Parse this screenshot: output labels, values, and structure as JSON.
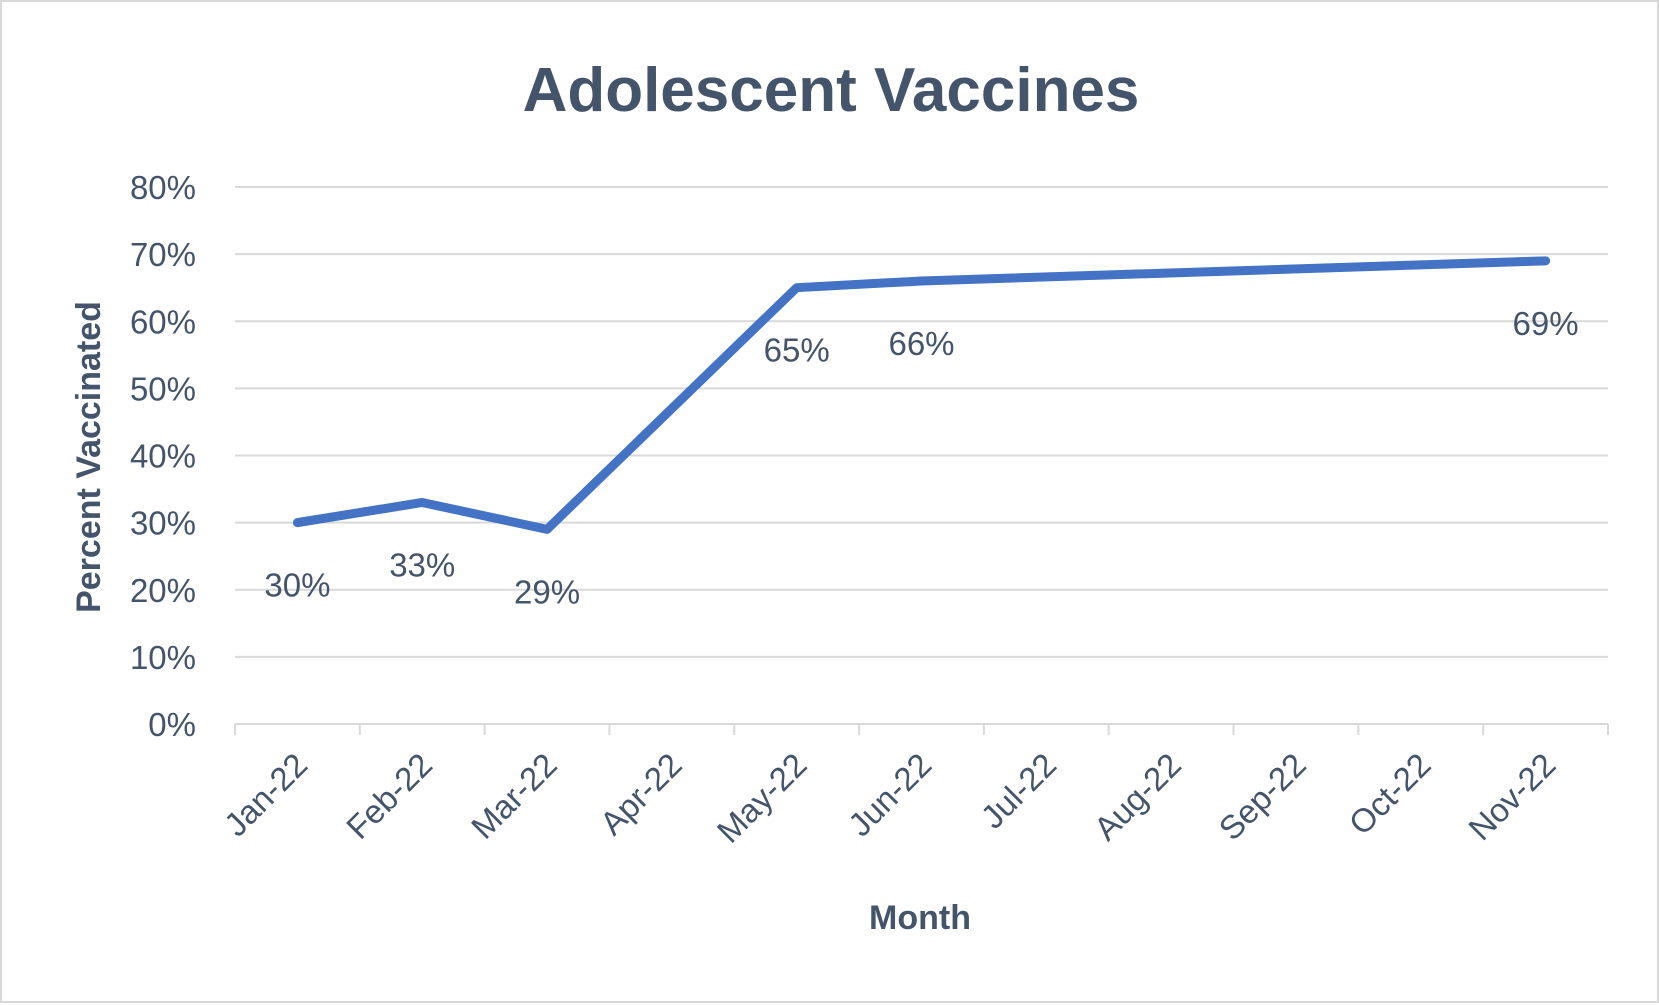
{
  "chart_data": {
    "type": "line",
    "title": "Adolescent Vaccines",
    "xlabel": "Month",
    "ylabel": "Percent Vaccinated",
    "ylim": [
      0,
      0.8
    ],
    "yticks": [
      0,
      0.1,
      0.2,
      0.3,
      0.4,
      0.5,
      0.6,
      0.7,
      0.8
    ],
    "ytick_labels": [
      "0%",
      "10%",
      "20%",
      "30%",
      "40%",
      "50%",
      "60%",
      "70%",
      "80%"
    ],
    "categories": [
      "Jan-22",
      "Feb-22",
      "Mar-22",
      "Apr-22",
      "May-22",
      "Jun-22",
      "Jul-22",
      "Aug-22",
      "Sep-22",
      "Oct-22",
      "Nov-22"
    ],
    "points": [
      {
        "x": "Jan-22",
        "y": 0.3,
        "label": "30%"
      },
      {
        "x": "Feb-22",
        "y": 0.33,
        "label": "33%"
      },
      {
        "x": "Mar-22",
        "y": 0.29,
        "label": "29%"
      },
      {
        "x": "May-22",
        "y": 0.65,
        "label": "65%"
      },
      {
        "x": "Jun-22",
        "y": 0.66,
        "label": "66%"
      },
      {
        "x": "Nov-22",
        "y": 0.69,
        "label": "69%"
      }
    ],
    "grid": true,
    "legend": "none",
    "colors": {
      "line": "#4472c4",
      "text": "#44546a",
      "grid": "#d9d9d9"
    }
  }
}
